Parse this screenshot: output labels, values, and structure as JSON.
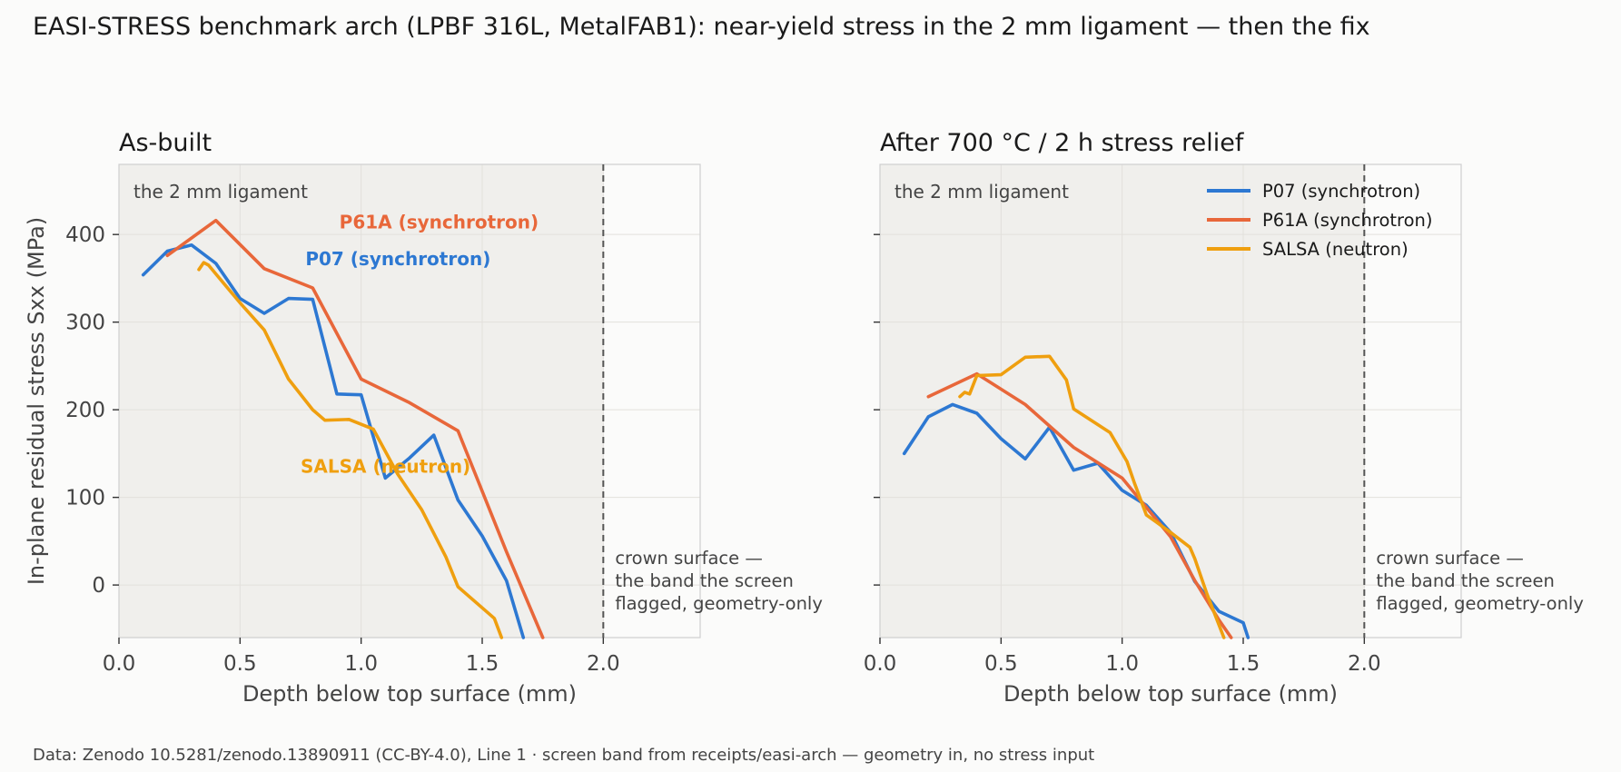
{
  "title": "EASI-STRESS benchmark arch (LPBF 316L, MetalFAB1): near-yield stress in the 2 mm ligament — then the fix",
  "footer": "Data: Zenodo 10.5281/zenodo.13890911 (CC-BY-4.0), Line 1 · screen band from receipts/easi-arch — geometry in, no stress input",
  "colors": {
    "P07": "#2d78d2",
    "P61A": "#e8673a",
    "SALSA": "#ef9f0f",
    "band": "#f0efec",
    "text": "#444444"
  },
  "chart_data": [
    {
      "type": "line",
      "title": "As-built",
      "xlabel": "Depth below top surface (mm)",
      "ylabel": "In-plane residual stress Sxx (MPa)",
      "xlim": [
        0,
        2.4
      ],
      "ylim": [
        -60,
        480
      ],
      "xticks": [
        "0.0",
        "0.5",
        "1.0",
        "1.5",
        "2.0"
      ],
      "yticks": [
        "0",
        "100",
        "200",
        "300",
        "400"
      ],
      "grid": true,
      "band": {
        "x": [
          0,
          2.0
        ],
        "label": "the 2 mm ligament"
      },
      "vline": {
        "x": 2.0,
        "label": [
          "crown surface —",
          "the band the screen",
          "flagged, geometry-only"
        ]
      },
      "legend": "inline",
      "series": [
        {
          "name": "P07 (synchrotron)",
          "color_key": "P07",
          "label_pos": [
            0.77,
            365
          ],
          "x": [
            0.1,
            0.2,
            0.3,
            0.4,
            0.5,
            0.6,
            0.7,
            0.8,
            0.9,
            1.0,
            1.1,
            1.2,
            1.3,
            1.4,
            1.5,
            1.6,
            1.67
          ],
          "y": [
            354,
            381,
            388,
            367,
            327,
            310,
            327,
            326,
            218,
            217,
            122,
            145,
            171,
            97,
            56,
            5,
            -60
          ]
        },
        {
          "name": "P61A (synchrotron)",
          "color_key": "P61A",
          "label_pos": [
            0.91,
            407
          ],
          "x": [
            0.2,
            0.4,
            0.6,
            0.8,
            1.0,
            1.2,
            1.4,
            1.6,
            1.75
          ],
          "y": [
            376,
            416,
            361,
            339,
            235,
            208,
            176,
            38,
            -60
          ]
        },
        {
          "name": "SALSA (neutron)",
          "color_key": "SALSA",
          "label_pos": [
            0.75,
            128
          ],
          "x": [
            0.33,
            0.35,
            0.37,
            0.4,
            0.5,
            0.6,
            0.7,
            0.8,
            0.85,
            0.95,
            1.05,
            1.15,
            1.25,
            1.35,
            1.4,
            1.55,
            1.58
          ],
          "y": [
            360,
            368,
            365,
            355,
            322,
            291,
            235,
            200,
            188,
            189,
            178,
            127,
            86,
            32,
            -2,
            -38,
            -60
          ]
        }
      ]
    },
    {
      "type": "line",
      "title": "After 700 °C / 2 h stress relief",
      "xlabel": "Depth below top surface (mm)",
      "ylabel": "",
      "xlim": [
        0,
        2.4
      ],
      "ylim": [
        -60,
        480
      ],
      "xticks": [
        "0.0",
        "0.5",
        "1.0",
        "1.5",
        "2.0"
      ],
      "yticks": [
        "0",
        "100",
        "200",
        "300",
        "400"
      ],
      "grid": true,
      "band": {
        "x": [
          0,
          2.0
        ],
        "label": "the 2 mm ligament"
      },
      "vline": {
        "x": 2.0,
        "label": [
          "crown surface —",
          "the band the screen",
          "flagged, geometry-only"
        ]
      },
      "legend": "top-right",
      "series": [
        {
          "name": "P07 (synchrotron)",
          "color_key": "P07",
          "x": [
            0.1,
            0.2,
            0.3,
            0.4,
            0.5,
            0.6,
            0.7,
            0.8,
            0.9,
            1.0,
            1.1,
            1.2,
            1.3,
            1.4,
            1.5,
            1.52
          ],
          "y": [
            150,
            192,
            206,
            196,
            167,
            144,
            180,
            131,
            139,
            108,
            91,
            60,
            4,
            -30,
            -43,
            -60
          ]
        },
        {
          "name": "P61A (synchrotron)",
          "color_key": "P61A",
          "x": [
            0.2,
            0.4,
            0.6,
            0.8,
            1.0,
            1.2,
            1.3,
            1.4,
            1.45
          ],
          "y": [
            215,
            241,
            206,
            157,
            122,
            55,
            5,
            -40,
            -60
          ]
        },
        {
          "name": "SALSA (neutron)",
          "color_key": "SALSA",
          "x": [
            0.33,
            0.35,
            0.37,
            0.4,
            0.5,
            0.6,
            0.7,
            0.77,
            0.8,
            0.95,
            1.02,
            1.05,
            1.1,
            1.2,
            1.28,
            1.3,
            1.35,
            1.42
          ],
          "y": [
            215,
            220,
            218,
            239,
            240,
            260,
            261,
            234,
            201,
            174,
            141,
            117,
            80,
            60,
            43,
            30,
            -10,
            -60
          ]
        }
      ]
    }
  ]
}
